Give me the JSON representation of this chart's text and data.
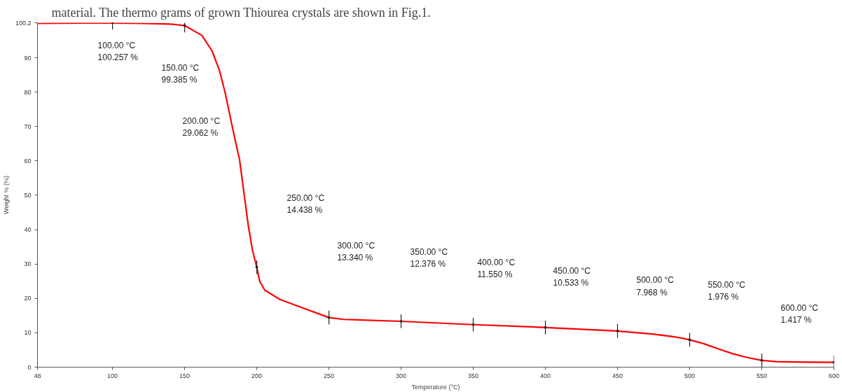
{
  "chart_data": {
    "type": "line",
    "xlabel": "Temperature (°C)",
    "ylabel": "Weight % (%)",
    "x": [
      48,
      80,
      100,
      120,
      140,
      150,
      162,
      169,
      174,
      178,
      181,
      184.5,
      188,
      191,
      194,
      197,
      200,
      202,
      205.5,
      216,
      232,
      245,
      250,
      260,
      300,
      350,
      400,
      450,
      475,
      490,
      500,
      510,
      520,
      530,
      540,
      550,
      560,
      580,
      600
    ],
    "series": [
      {
        "color": "#ff0000",
        "values": [
          100.0,
          100.1,
          100.1,
          100.0,
          99.8,
          99.385,
          96.5,
          92,
          86.5,
          80,
          74,
          67,
          60.5,
          51,
          41.5,
          34,
          29.062,
          25,
          22.4,
          19.7,
          17.2,
          15.2,
          14.438,
          13.9,
          13.34,
          12.376,
          11.55,
          10.533,
          9.6,
          8.8,
          7.968,
          6.8,
          5.3,
          3.9,
          2.8,
          1.976,
          1.6,
          1.45,
          1.417
        ]
      },
      {
        "type": "scatter",
        "marker": "circle",
        "errors": [
          2,
          2,
          2,
          2,
          2,
          2,
          2,
          2,
          2,
          2,
          2
        ],
        "color": "#222222",
        "x": [
          100,
          150,
          200,
          250,
          300,
          350,
          400,
          450,
          500,
          550,
          600
        ],
        "values": [
          100.2,
          99.385,
          29.062,
          14.438,
          13.34,
          12.376,
          11.55,
          10.533,
          7.968,
          1.976,
          1.417
        ]
      }
    ],
    "xlim": [
      48,
      600
    ],
    "ylim": [
      0,
      100.2
    ],
    "xticks": [
      48,
      100,
      150,
      200,
      250,
      300,
      350,
      400,
      450,
      500,
      550,
      600
    ],
    "yticks": [
      0,
      10,
      20,
      30,
      40,
      50,
      60,
      70,
      80,
      90,
      100.2
    ],
    "grid": false,
    "marker": "none",
    "line_style": "solid",
    "annotations": [
      "material. The thermo grams of grown Thiourea crystals are shown in Fig.1.",
      "100.00 °C\n100.257 %",
      "150.00 °C\n99.385 %",
      "200.00 °C\n29.062 %",
      "250.00 °C\n14.438 %",
      "300.00 °C\n13.340 %",
      "350.00 °C\n12.376 %",
      "400.00 °C\n11.550 %",
      "450.00 °C\n10.533 %",
      "500.00 °C\n7.968 %",
      "550.00 °C\n1.976 %",
      "600.00 °C\n1.417 %"
    ]
  }
}
